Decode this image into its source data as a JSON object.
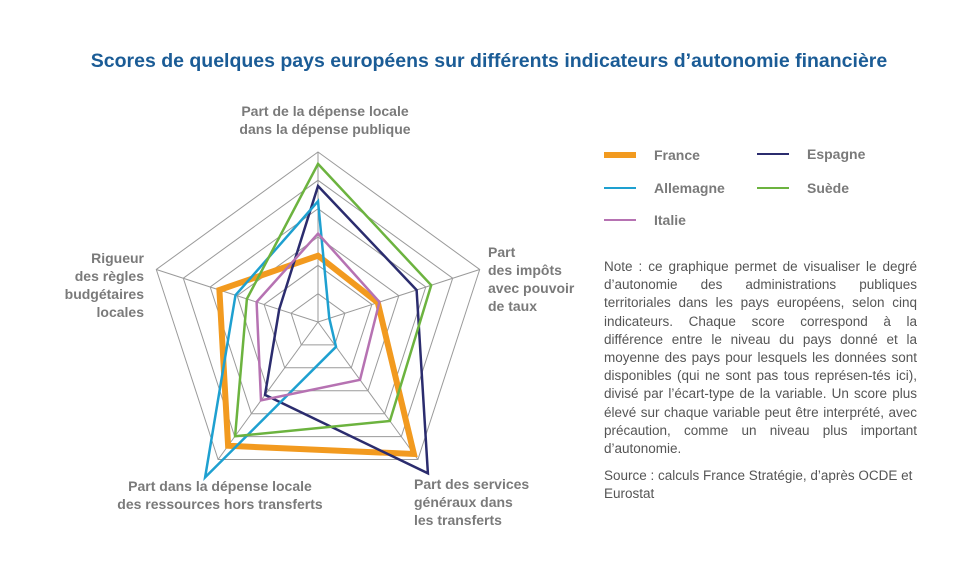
{
  "chart_data": {
    "type": "radar",
    "title": "Scores de quelques pays européens sur différents indicateurs d’autonomie financière",
    "axes": [
      "Part de la dépense locale\ndans la dépense publique",
      "Part\ndes impôts\navec pouvoir\nde taux",
      "Part des services\ngénéraux dans\nles transferts",
      "Part dans la dépense locale\ndes ressources hors transferts",
      "Rigueur\ndes règles\nbudgétaires\nlocales"
    ],
    "rings": 6,
    "series": [
      {
        "name": "France",
        "color": "#f29a1f",
        "width": 6,
        "values": [
          0.39,
          0.37,
          0.96,
          0.9,
          0.61
        ]
      },
      {
        "name": "Espagne",
        "color": "#2b2c6e",
        "width": 2.5,
        "values": [
          0.8,
          0.61,
          1.1,
          0.53,
          0.24
        ]
      },
      {
        "name": "Allemagne",
        "color": "#1ea0d0",
        "width": 2.5,
        "values": [
          0.71,
          0.07,
          0.18,
          1.13,
          0.51
        ]
      },
      {
        "name": "Suède",
        "color": "#6cb33f",
        "width": 2.5,
        "values": [
          0.93,
          0.7,
          0.72,
          0.83,
          0.44
        ]
      },
      {
        "name": "Italie",
        "color": "#b672b2",
        "width": 2.5,
        "values": [
          0.52,
          0.38,
          0.42,
          0.57,
          0.38
        ]
      }
    ]
  },
  "note": "Note : ce graphique permet de visualiser le degré d’autonomie des administrations publiques territoriales dans les pays européens, selon cinq indicateurs. Chaque score correspond à la différence entre le niveau du pays donné et la moyenne des pays pour lesquels les données sont disponibles (qui ne sont pas tous représen-tés ici), divisé par l’écart-type de la variable. Un score plus élevé sur chaque variable peut être interprété, avec précaution, comme un niveau plus important d’autonomie.",
  "source": "Source : calculs France Stratégie, d’après OCDE et Eurostat"
}
